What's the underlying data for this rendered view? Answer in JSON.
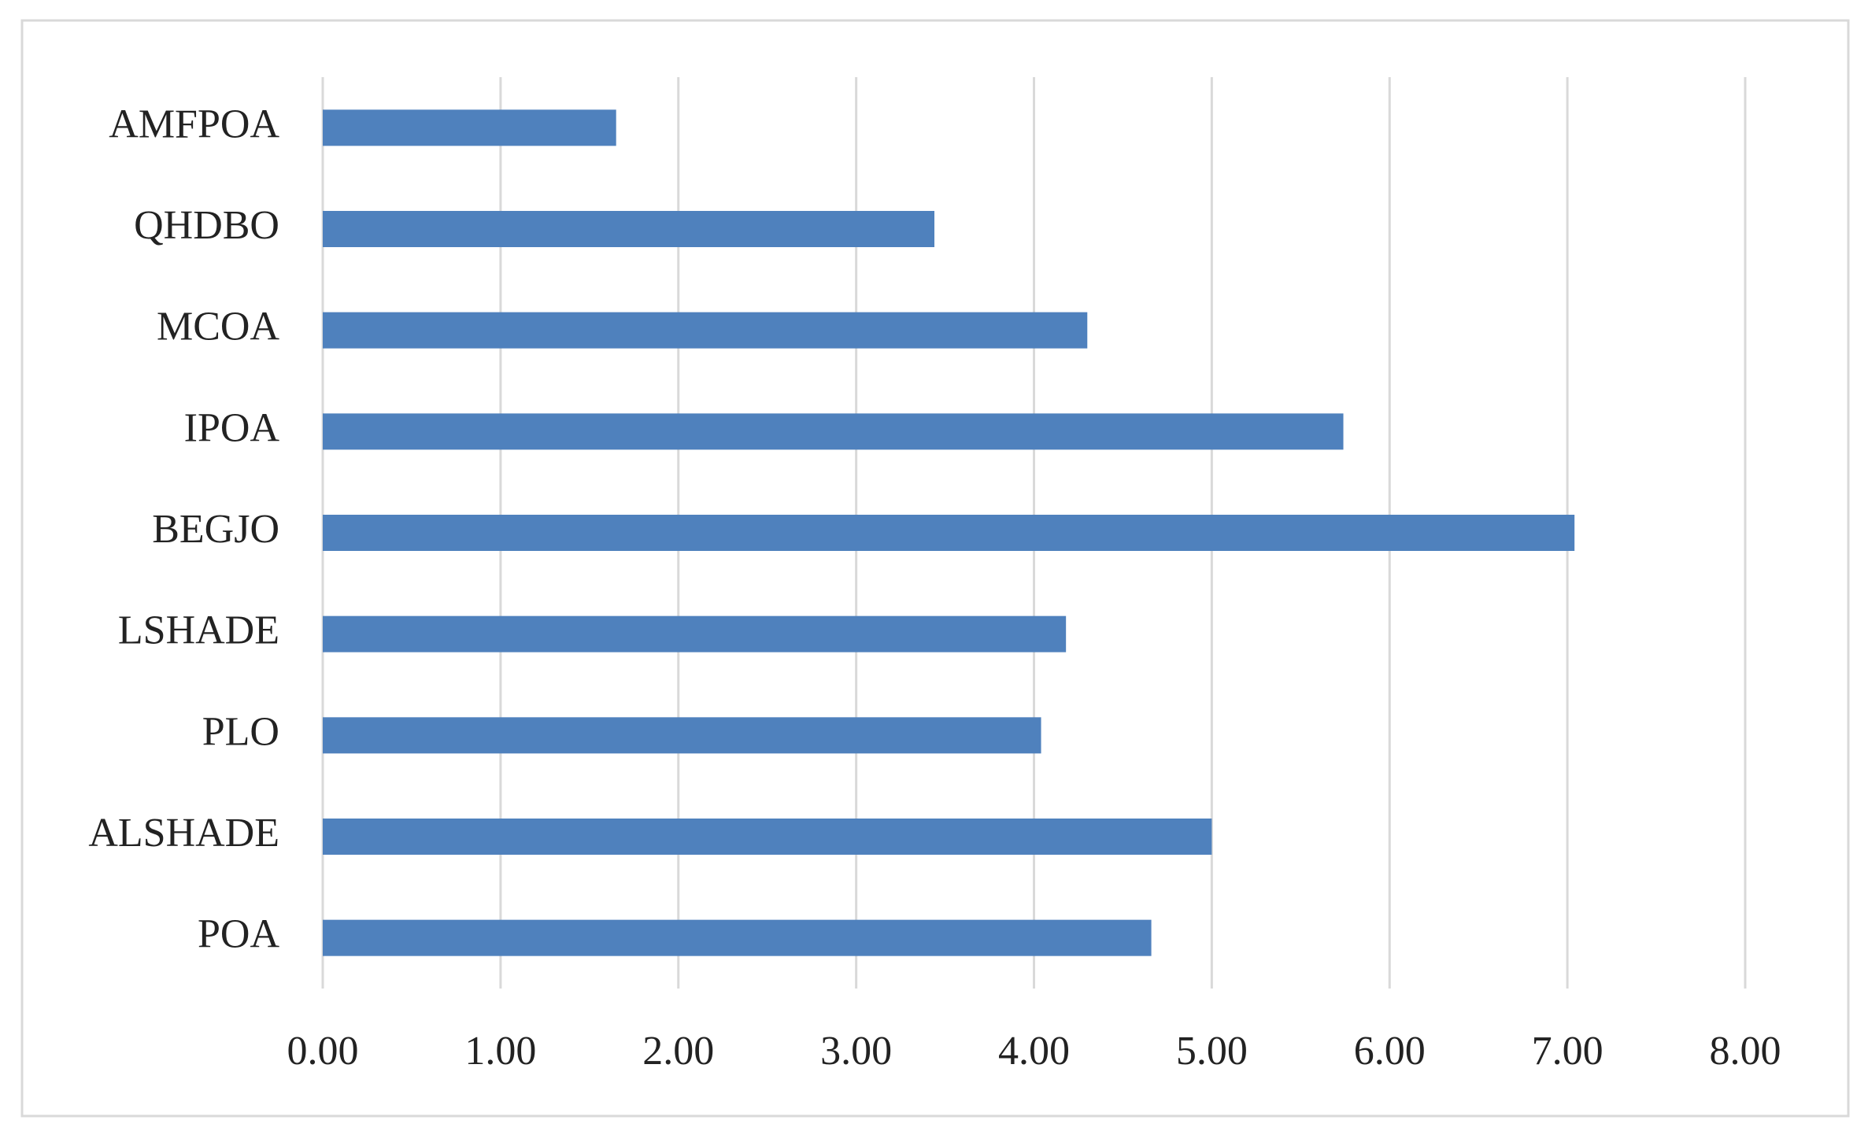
{
  "chart_data": {
    "type": "hbar",
    "categories": [
      "AMFPOA",
      "QHDBO",
      "MCOA",
      "IPOA",
      "BEGJO",
      "LSHADE",
      "PLO",
      "ALSHADE",
      "POA"
    ],
    "values": [
      1.65,
      3.44,
      4.3,
      5.74,
      7.04,
      4.18,
      4.04,
      5.0,
      4.66
    ],
    "color": "#4f81bd",
    "xlim": [
      0,
      8
    ],
    "xticks": [
      {
        "value": 0,
        "label": "0.00"
      },
      {
        "value": 1,
        "label": "1.00"
      },
      {
        "value": 2,
        "label": "2.00"
      },
      {
        "value": 3,
        "label": "3.00"
      },
      {
        "value": 4,
        "label": "4.00"
      },
      {
        "value": 5,
        "label": "5.00"
      },
      {
        "value": 6,
        "label": "6.00"
      },
      {
        "value": 7,
        "label": "7.00"
      },
      {
        "value": 8,
        "label": "8.00"
      }
    ],
    "grid": true
  }
}
